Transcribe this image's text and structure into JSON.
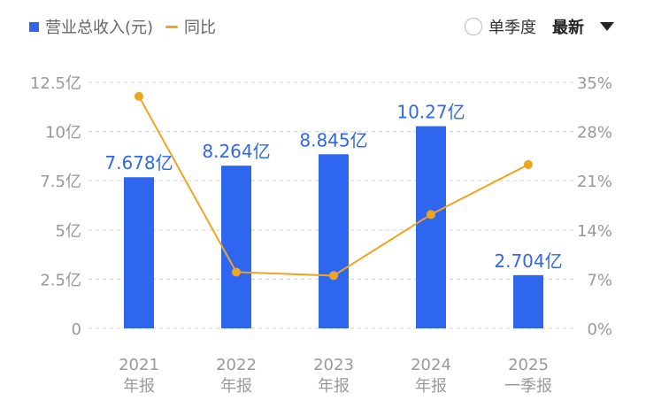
{
  "legend": {
    "revenue_label": "营业总收入(元)",
    "yoy_label": "同比"
  },
  "controls": {
    "quarter_label": "单季度",
    "sort_label": "最新"
  },
  "colors": {
    "bar": "#2f66f0",
    "line": "#eea51f",
    "label": "#2f66f0",
    "axis_text": "#999999",
    "grid": "#d9d9d9"
  },
  "chart_data": {
    "type": "bar",
    "categories": [
      [
        "2021",
        "年报"
      ],
      [
        "2022",
        "年报"
      ],
      [
        "2023",
        "年报"
      ],
      [
        "2024",
        "年报"
      ],
      [
        "2025",
        "一季报"
      ]
    ],
    "series": [
      {
        "name": "营业总收入(元)",
        "type": "bar",
        "values": [
          7.678,
          8.264,
          8.845,
          10.27,
          2.704
        ],
        "labels": [
          "7.678亿",
          "8.264亿",
          "8.845亿",
          "10.27亿",
          "2.704亿"
        ],
        "axis": "left"
      },
      {
        "name": "同比",
        "type": "line",
        "values": [
          33.0,
          8.0,
          7.5,
          16.2,
          23.3
        ],
        "axis": "right"
      }
    ],
    "y_left": {
      "ticks": [
        0,
        2.5,
        5,
        7.5,
        10,
        12.5
      ],
      "tick_labels": [
        "0",
        "2.5亿",
        "5亿",
        "7.5亿",
        "10亿",
        "12.5亿"
      ],
      "ylim": [
        0,
        12.5
      ]
    },
    "y_right": {
      "ticks": [
        0,
        7,
        14,
        21,
        28,
        35
      ],
      "tick_labels": [
        "0%",
        "7%",
        "14%",
        "21%",
        "28%",
        "35%"
      ],
      "ylim": [
        0,
        35
      ]
    },
    "grid": true
  }
}
